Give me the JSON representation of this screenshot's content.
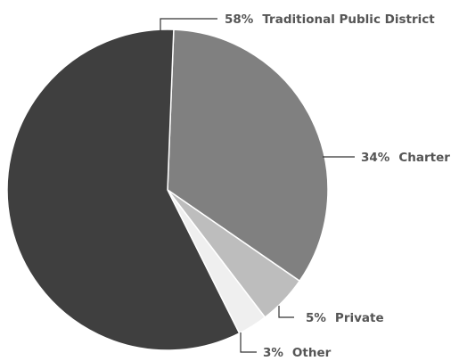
{
  "chart_data": {
    "type": "pie",
    "title": "",
    "slices": [
      {
        "label": "Traditional Public District",
        "value": 58,
        "value_label": "58%",
        "color": "#3f3f3f"
      },
      {
        "label": "Charter",
        "value": 34,
        "value_label": "34%",
        "color": "#808080"
      },
      {
        "label": "Private",
        "value": 5,
        "value_label": "5%",
        "color": "#bdbdbd"
      },
      {
        "label": "Other",
        "value": 3,
        "value_label": "3%",
        "color": "#efefef"
      }
    ],
    "legend": "none",
    "start": "top",
    "direction": "clockwise"
  }
}
